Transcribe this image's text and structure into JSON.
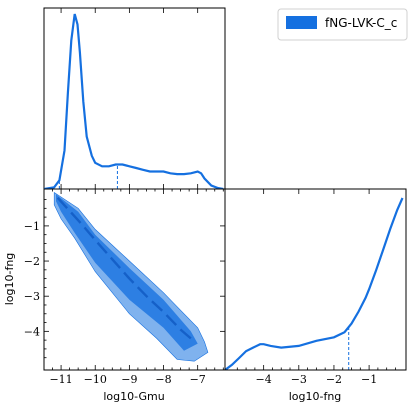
{
  "chart_data": {
    "type": "corner",
    "legend": {
      "label": "fNG-LVK-C_c",
      "color": "#1570e0",
      "placement": "top-right"
    },
    "series_color": "#1570e0",
    "fill_inner": "#2d7fe3",
    "fill_outer": "#7fb2ee",
    "gmu_range": [
      -11.5,
      -6.2
    ],
    "fng_range": [
      -5.1,
      0.05
    ],
    "gmu_ticks": [
      -11,
      -10,
      -9,
      -8,
      -7
    ],
    "fng_ticks": [
      -4,
      -3,
      -2,
      -1
    ],
    "gmu_tick_labels": [
      "−11",
      "−10",
      "−9",
      "−8",
      "−7"
    ],
    "fng_tick_labels": [
      "−4",
      "−3",
      "−2",
      "−1"
    ],
    "xlabel_bottom_left": "log10-Gmu",
    "xlabel_bottom_right": "log10-fng",
    "ylabel_bottom_left": "log10-fng",
    "gmu_marginal": {
      "x": [
        -11.5,
        -11.2,
        -11.05,
        -10.9,
        -10.8,
        -10.7,
        -10.6,
        -10.52,
        -10.45,
        -10.35,
        -10.25,
        -10.1,
        -10.0,
        -9.8,
        -9.6,
        -9.4,
        -9.2,
        -9.0,
        -8.8,
        -8.6,
        -8.4,
        -8.2,
        -8.0,
        -7.8,
        -7.6,
        -7.4,
        -7.2,
        -7.0,
        -6.9,
        -6.8,
        -6.6,
        -6.4,
        -6.25
      ],
      "y": [
        0.0,
        0.01,
        0.05,
        0.22,
        0.55,
        0.85,
        1.0,
        0.94,
        0.78,
        0.5,
        0.3,
        0.19,
        0.15,
        0.13,
        0.13,
        0.14,
        0.14,
        0.13,
        0.12,
        0.11,
        0.1,
        0.1,
        0.1,
        0.09,
        0.085,
        0.085,
        0.09,
        0.1,
        0.09,
        0.06,
        0.02,
        0.005,
        0.0
      ],
      "marker_x": -9.35
    },
    "fng_marginal": {
      "x": [
        -5.1,
        -4.9,
        -4.7,
        -4.5,
        -4.3,
        -4.1,
        -4.0,
        -3.8,
        -3.5,
        -3.0,
        -2.5,
        -2.0,
        -1.7,
        -1.5,
        -1.3,
        -1.1,
        -1.0,
        -0.8,
        -0.6,
        -0.4,
        -0.2,
        -0.05
      ],
      "y": [
        0.0,
        0.03,
        0.07,
        0.11,
        0.13,
        0.15,
        0.15,
        0.14,
        0.13,
        0.14,
        0.17,
        0.19,
        0.22,
        0.27,
        0.34,
        0.42,
        0.47,
        0.58,
        0.7,
        0.82,
        0.93,
        1.0
      ],
      "marker_x": -1.58
    },
    "joint_outer": {
      "upper": [
        [
          -11.2,
          -0.05
        ],
        [
          -10.5,
          -0.5
        ],
        [
          -10.0,
          -1.1
        ],
        [
          -9.0,
          -2.0
        ],
        [
          -8.0,
          -2.9
        ],
        [
          -7.5,
          -3.4
        ],
        [
          -7.0,
          -3.9
        ],
        [
          -6.8,
          -4.3
        ],
        [
          -6.7,
          -4.6
        ]
      ],
      "lower": [
        [
          -6.7,
          -4.6
        ],
        [
          -7.1,
          -4.85
        ],
        [
          -7.6,
          -4.8
        ],
        [
          -8.2,
          -4.2
        ],
        [
          -9.0,
          -3.5
        ],
        [
          -10.0,
          -2.3
        ],
        [
          -10.6,
          -1.35
        ],
        [
          -11.0,
          -0.8
        ],
        [
          -11.2,
          -0.4
        ]
      ]
    },
    "joint_inner": {
      "upper": [
        [
          -11.15,
          -0.1
        ],
        [
          -10.5,
          -0.6
        ],
        [
          -10.0,
          -1.25
        ],
        [
          -9.0,
          -2.2
        ],
        [
          -8.0,
          -3.1
        ],
        [
          -7.2,
          -4.0
        ],
        [
          -7.0,
          -4.35
        ]
      ],
      "lower": [
        [
          -7.0,
          -4.35
        ],
        [
          -7.4,
          -4.55
        ],
        [
          -8.0,
          -3.9
        ],
        [
          -9.0,
          -3.1
        ],
        [
          -10.0,
          -2.05
        ],
        [
          -10.6,
          -1.2
        ],
        [
          -11.0,
          -0.6
        ],
        [
          -11.15,
          -0.3
        ]
      ]
    },
    "joint_ridge": [
      [
        -11.1,
        -0.2
      ],
      [
        -10.4,
        -0.95
      ],
      [
        -10.0,
        -1.4
      ],
      [
        -9.5,
        -1.95
      ],
      [
        -9.0,
        -2.5
      ],
      [
        -8.5,
        -3.0
      ],
      [
        -8.0,
        -3.45
      ],
      [
        -7.5,
        -3.95
      ],
      [
        -7.2,
        -4.2
      ]
    ]
  }
}
